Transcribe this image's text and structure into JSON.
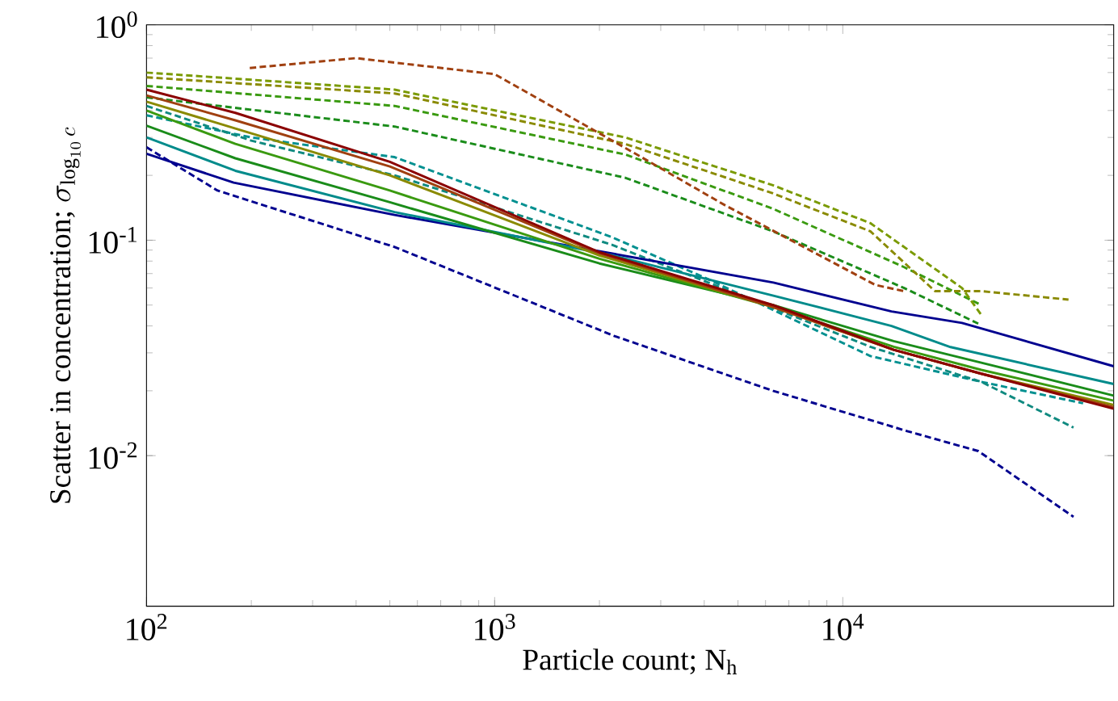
{
  "chart_data": {
    "type": "line",
    "log": "xy",
    "marker": "none",
    "xlabel": "Particle count; N$_{h}$",
    "ylabel": "\\textrm{Scatter in concentration; }\\sigma_{\\log_{10} c}",
    "xlim": [
      100,
      60000
    ],
    "ylim": [
      0.002,
      1
    ],
    "xticks": [
      {
        "value": 100,
        "label": "10$^{2}$"
      },
      {
        "value": 1000,
        "label": "10$^{3}$"
      },
      {
        "value": 10000,
        "label": "10$^{4}$"
      }
    ],
    "yticks": [
      {
        "value": 0.01,
        "label": "10$^{-2}$"
      },
      {
        "value": 0.1,
        "label": "10$^{-1}$"
      },
      {
        "value": 1,
        "label": "10$^{0}$"
      }
    ],
    "series": [
      {
        "color": "#00008f",
        "line_style": "dashed",
        "x": [
          100,
          160,
          516,
          2200,
          6300,
          15300,
          24500,
          46000
        ],
        "values": [
          0.27,
          0.17,
          0.093,
          0.036,
          0.02,
          0.013,
          0.0105,
          0.0052
        ]
      },
      {
        "color": "#009090",
        "line_style": "dashed",
        "x": [
          100,
          200,
          516,
          2180,
          4100,
          12000,
          25000,
          49000
        ],
        "values": [
          0.38,
          0.3,
          0.243,
          0.103,
          0.066,
          0.029,
          0.022,
          0.0175
        ]
      },
      {
        "color": "#108a80",
        "line_style": "dashed",
        "x": [
          100,
          200,
          516,
          2180,
          6000,
          12000,
          25000,
          46000
        ],
        "values": [
          0.42,
          0.29,
          0.2,
          0.095,
          0.05,
          0.032,
          0.022,
          0.0135
        ]
      },
      {
        "color": "#1a8c1a",
        "line_style": "dashed",
        "x": [
          100,
          516,
          2370,
          6300,
          15000,
          24500
        ],
        "values": [
          0.46,
          0.337,
          0.195,
          0.11,
          0.06,
          0.041
        ]
      },
      {
        "color": "#3a9a10",
        "line_style": "dashed",
        "x": [
          100,
          516,
          2370,
          6300,
          15000,
          25000
        ],
        "values": [
          0.52,
          0.42,
          0.25,
          0.14,
          0.075,
          0.05
        ]
      },
      {
        "color": "#8a8a00",
        "line_style": "dashed",
        "x": [
          100,
          516,
          2370,
          6300,
          12000,
          18400,
          25000,
          44500
        ],
        "values": [
          0.57,
          0.48,
          0.28,
          0.165,
          0.11,
          0.058,
          0.058,
          0.053
        ]
      },
      {
        "color": "#7a9a00",
        "line_style": "dashed",
        "x": [
          100,
          516,
          2370,
          6300,
          12000,
          22000,
          25000
        ],
        "values": [
          0.6,
          0.5,
          0.3,
          0.18,
          0.12,
          0.06,
          0.045
        ]
      },
      {
        "color": "#a04010",
        "line_style": "dashed",
        "x": [
          198,
          400,
          1000,
          2560,
          4600,
          12400,
          15000
        ],
        "values": [
          0.63,
          0.7,
          0.59,
          0.25,
          0.145,
          0.062,
          0.058
        ]
      },
      {
        "color": "#00008f",
        "line_style": "solid",
        "x": [
          100,
          178,
          516,
          2180,
          6320,
          13800,
          22000,
          60000
        ],
        "values": [
          0.252,
          0.185,
          0.131,
          0.0867,
          0.0636,
          0.0467,
          0.0413,
          0.026
        ]
      },
      {
        "color": "#008b8b",
        "line_style": "solid",
        "x": [
          100,
          180,
          516,
          2180,
          6320,
          13800,
          20400,
          60000
        ],
        "values": [
          0.3,
          0.21,
          0.135,
          0.085,
          0.0553,
          0.04,
          0.0319,
          0.0215
        ]
      },
      {
        "color": "#1a8c1a",
        "line_style": "solid",
        "x": [
          100,
          180,
          500,
          2000,
          6300,
          14000,
          25000,
          60000
        ],
        "values": [
          0.34,
          0.24,
          0.15,
          0.078,
          0.05,
          0.034,
          0.027,
          0.019
        ]
      },
      {
        "color": "#3a9a10",
        "line_style": "solid",
        "x": [
          100,
          180,
          500,
          2000,
          6300,
          14000,
          25000,
          60000
        ],
        "values": [
          0.4,
          0.28,
          0.17,
          0.082,
          0.049,
          0.032,
          0.025,
          0.018
        ]
      },
      {
        "color": "#8a8a00",
        "line_style": "solid",
        "x": [
          100,
          180,
          500,
          2000,
          6300,
          14000,
          25000,
          60000
        ],
        "values": [
          0.44,
          0.33,
          0.2,
          0.085,
          0.049,
          0.031,
          0.024,
          0.0172
        ]
      },
      {
        "color": "#a04010",
        "line_style": "solid",
        "x": [
          100,
          180,
          500,
          2000,
          6300,
          14000,
          25000,
          60000
        ],
        "values": [
          0.47,
          0.36,
          0.22,
          0.087,
          0.049,
          0.031,
          0.024,
          0.0168
        ]
      },
      {
        "color": "#8b0000",
        "line_style": "solid",
        "x": [
          100,
          180,
          500,
          2000,
          6300,
          14000,
          25000,
          60000
        ],
        "values": [
          0.5,
          0.39,
          0.231,
          0.088,
          0.05,
          0.031,
          0.024,
          0.0165
        ]
      }
    ]
  }
}
